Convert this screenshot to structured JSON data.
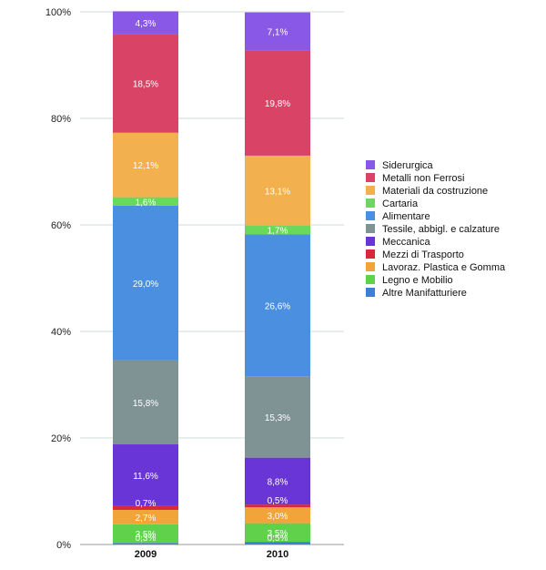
{
  "chart_data": {
    "type": "bar",
    "stacked": true,
    "title": "",
    "xlabel": "",
    "ylabel": "",
    "ylim": [
      0,
      100
    ],
    "y_ticks": [
      "0%",
      "20%",
      "40%",
      "60%",
      "80%",
      "100%"
    ],
    "y_tick_values": [
      0,
      20,
      40,
      60,
      80,
      100
    ],
    "categories": [
      "2009",
      "2010"
    ],
    "legend_position": "right",
    "series": [
      {
        "name": "Altre Manifatturiere",
        "color": "#3d7fd6",
        "values": [
          0.3,
          0.5
        ],
        "labels": [
          "0,3%",
          "0,5%"
        ]
      },
      {
        "name": "Legno e Mobilio",
        "color": "#5fd14a",
        "values": [
          3.5,
          3.5
        ],
        "labels": [
          "3,5%",
          "3,5%"
        ]
      },
      {
        "name": "Lavoraz. Plastica e Gomma",
        "color": "#f0a43a",
        "values": [
          2.7,
          3.0
        ],
        "labels": [
          "2,7%",
          "3,0%"
        ]
      },
      {
        "name": "Mezzi di Trasporto",
        "color": "#d9283a",
        "values": [
          0.7,
          0.5
        ],
        "labels": [
          "0,7%",
          "0,5%"
        ]
      },
      {
        "name": "Meccanica",
        "color": "#6a35d6",
        "values": [
          11.6,
          8.8
        ],
        "labels": [
          "11,6%",
          "8,8%"
        ]
      },
      {
        "name": "Tessile, abbigl. e calzature",
        "color": "#7f9294",
        "values": [
          15.8,
          15.3
        ],
        "labels": [
          "15,8%",
          "15,3%"
        ]
      },
      {
        "name": "Alimentare",
        "color": "#4a8fe0",
        "values": [
          29.0,
          26.6
        ],
        "labels": [
          "29,0%",
          "26,6%"
        ]
      },
      {
        "name": "Cartaria",
        "color": "#6ad85a",
        "values": [
          1.6,
          1.7
        ],
        "labels": [
          "1,6%",
          "1,7%"
        ]
      },
      {
        "name": "Materiali da costruzione",
        "color": "#f2b04e",
        "values": [
          12.1,
          13.1
        ],
        "labels": [
          "12,1%",
          "13,1%"
        ]
      },
      {
        "name": "Metalli non Ferrosi",
        "color": "#d94466",
        "values": [
          18.5,
          19.8
        ],
        "labels": [
          "18,5%",
          "19,8%"
        ]
      },
      {
        "name": "Siderurgica",
        "color": "#8a58e6",
        "values": [
          4.3,
          7.1
        ],
        "labels": [
          "4,3%",
          "7,1%"
        ]
      }
    ],
    "legend_order": [
      "Siderurgica",
      "Metalli non Ferrosi",
      "Materiali da costruzione",
      "Cartaria",
      "Alimentare",
      "Tessile, abbigl. e calzature",
      "Meccanica",
      "Mezzi di Trasporto",
      "Lavoraz. Plastica e Gomma",
      "Legno e Mobilio",
      "Altre Manifatturiere"
    ]
  }
}
